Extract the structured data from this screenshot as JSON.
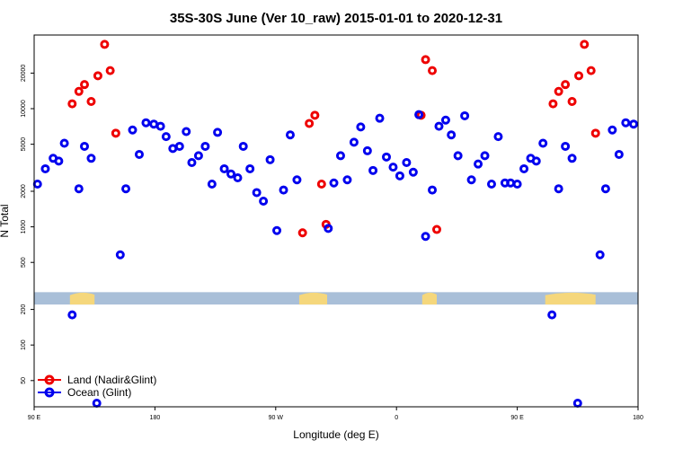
{
  "chart_data": {
    "type": "scatter",
    "title": "35S-30S June (Ver 10_raw)   2015-01-01 to 2020-12-31",
    "xlabel": "Longitude (deg E)",
    "ylabel": "N Total",
    "y_scale": "log",
    "xlim": [
      90,
      630
    ],
    "ylim": [
      30,
      42000
    ],
    "x_ticks": [
      {
        "value": 90,
        "label": "90 E"
      },
      {
        "value": 198,
        "label": "180"
      },
      {
        "value": 306,
        "label": "90 W"
      },
      {
        "value": 414,
        "label": "0"
      },
      {
        "value": 522,
        "label": "90 E"
      },
      {
        "value": 630,
        "label": "180"
      }
    ],
    "y_ticks": [
      {
        "value": 50,
        "label": "50"
      },
      {
        "value": 100,
        "label": "100"
      },
      {
        "value": 200,
        "label": "200"
      },
      {
        "value": 500,
        "label": "500"
      },
      {
        "value": 1000,
        "label": "1000"
      },
      {
        "value": 2000,
        "label": "2000"
      },
      {
        "value": 5000,
        "label": "5000"
      },
      {
        "value": 10000,
        "label": "10000"
      },
      {
        "value": 20000,
        "label": "20000"
      }
    ],
    "land_band": {
      "y_range": [
        220,
        280
      ],
      "land_color": "#f5d77c",
      "ocean_color": "#a9bfd8",
      "land_lon_ranges": [
        [
          122,
          144
        ],
        [
          327,
          352
        ],
        [
          437,
          450
        ],
        [
          547,
          592
        ]
      ]
    },
    "legend": {
      "position": "bottom-left",
      "entries": [
        "Land (Nadir&Glint)",
        "Ocean (Glint)"
      ]
    },
    "series": [
      {
        "name": "Land (Nadir&Glint)",
        "color": "#ee0000",
        "points": [
          {
            "x": 124,
            "y": 11000
          },
          {
            "x": 130,
            "y": 14000
          },
          {
            "x": 135,
            "y": 16000
          },
          {
            "x": 141,
            "y": 11500
          },
          {
            "x": 147,
            "y": 19000
          },
          {
            "x": 153,
            "y": 35000
          },
          {
            "x": 158,
            "y": 21000
          },
          {
            "x": 163,
            "y": 6200
          },
          {
            "x": 330,
            "y": 890
          },
          {
            "x": 336,
            "y": 7500
          },
          {
            "x": 341,
            "y": 8800
          },
          {
            "x": 347,
            "y": 2300
          },
          {
            "x": 351,
            "y": 1050
          },
          {
            "x": 436,
            "y": 8800
          },
          {
            "x": 440,
            "y": 26000
          },
          {
            "x": 446,
            "y": 21000
          },
          {
            "x": 450,
            "y": 950
          },
          {
            "x": 554,
            "y": 11000
          },
          {
            "x": 559,
            "y": 14000
          },
          {
            "x": 565,
            "y": 16000
          },
          {
            "x": 571,
            "y": 11500
          },
          {
            "x": 577,
            "y": 19000
          },
          {
            "x": 582,
            "y": 35000
          },
          {
            "x": 588,
            "y": 21000
          },
          {
            "x": 592,
            "y": 6200
          }
        ]
      },
      {
        "name": "Ocean (Glint)",
        "color": "#0000ee",
        "points": [
          {
            "x": 93,
            "y": 2300
          },
          {
            "x": 100,
            "y": 3100
          },
          {
            "x": 107,
            "y": 3800
          },
          {
            "x": 112,
            "y": 3600
          },
          {
            "x": 117,
            "y": 5100
          },
          {
            "x": 124,
            "y": 180
          },
          {
            "x": 130,
            "y": 2100
          },
          {
            "x": 135,
            "y": 4800
          },
          {
            "x": 141,
            "y": 3800
          },
          {
            "x": 146,
            "y": 32
          },
          {
            "x": 167,
            "y": 580
          },
          {
            "x": 172,
            "y": 2100
          },
          {
            "x": 178,
            "y": 6600
          },
          {
            "x": 184,
            "y": 4100
          },
          {
            "x": 190,
            "y": 7600
          },
          {
            "x": 197,
            "y": 7400
          },
          {
            "x": 203,
            "y": 7100
          },
          {
            "x": 208,
            "y": 5800
          },
          {
            "x": 214,
            "y": 4600
          },
          {
            "x": 220,
            "y": 4800
          },
          {
            "x": 226,
            "y": 6400
          },
          {
            "x": 231,
            "y": 3500
          },
          {
            "x": 237,
            "y": 4000
          },
          {
            "x": 243,
            "y": 4800
          },
          {
            "x": 249,
            "y": 2300
          },
          {
            "x": 254,
            "y": 6300
          },
          {
            "x": 260,
            "y": 3100
          },
          {
            "x": 266,
            "y": 2800
          },
          {
            "x": 272,
            "y": 2600
          },
          {
            "x": 277,
            "y": 4800
          },
          {
            "x": 283,
            "y": 3100
          },
          {
            "x": 289,
            "y": 1950
          },
          {
            "x": 295,
            "y": 1650
          },
          {
            "x": 301,
            "y": 3700
          },
          {
            "x": 307,
            "y": 930
          },
          {
            "x": 313,
            "y": 2050
          },
          {
            "x": 319,
            "y": 6000
          },
          {
            "x": 325,
            "y": 2500
          },
          {
            "x": 353,
            "y": 970
          },
          {
            "x": 358,
            "y": 2350
          },
          {
            "x": 364,
            "y": 4000
          },
          {
            "x": 370,
            "y": 2500
          },
          {
            "x": 376,
            "y": 5200
          },
          {
            "x": 382,
            "y": 7000
          },
          {
            "x": 388,
            "y": 4400
          },
          {
            "x": 393,
            "y": 3000
          },
          {
            "x": 399,
            "y": 8300
          },
          {
            "x": 405,
            "y": 3900
          },
          {
            "x": 411,
            "y": 3200
          },
          {
            "x": 417,
            "y": 2700
          },
          {
            "x": 423,
            "y": 3500
          },
          {
            "x": 429,
            "y": 2900
          },
          {
            "x": 434,
            "y": 8900
          },
          {
            "x": 440,
            "y": 830
          },
          {
            "x": 446,
            "y": 2050
          },
          {
            "x": 452,
            "y": 7100
          },
          {
            "x": 458,
            "y": 8000
          },
          {
            "x": 463,
            "y": 6000
          },
          {
            "x": 469,
            "y": 4000
          },
          {
            "x": 475,
            "y": 8700
          },
          {
            "x": 481,
            "y": 2500
          },
          {
            "x": 487,
            "y": 3400
          },
          {
            "x": 493,
            "y": 4000
          },
          {
            "x": 499,
            "y": 2300
          },
          {
            "x": 505,
            "y": 5800
          },
          {
            "x": 511,
            "y": 2350
          },
          {
            "x": 516,
            "y": 2350
          },
          {
            "x": 522,
            "y": 2300
          },
          {
            "x": 528,
            "y": 3100
          },
          {
            "x": 534,
            "y": 3800
          },
          {
            "x": 539,
            "y": 3600
          },
          {
            "x": 545,
            "y": 5100
          },
          {
            "x": 553,
            "y": 180
          },
          {
            "x": 559,
            "y": 2100
          },
          {
            "x": 565,
            "y": 4800
          },
          {
            "x": 571,
            "y": 3800
          },
          {
            "x": 576,
            "y": 32
          },
          {
            "x": 596,
            "y": 580
          },
          {
            "x": 601,
            "y": 2100
          },
          {
            "x": 607,
            "y": 6600
          },
          {
            "x": 613,
            "y": 4100
          },
          {
            "x": 619,
            "y": 7600
          },
          {
            "x": 626,
            "y": 7400
          }
        ]
      }
    ]
  }
}
